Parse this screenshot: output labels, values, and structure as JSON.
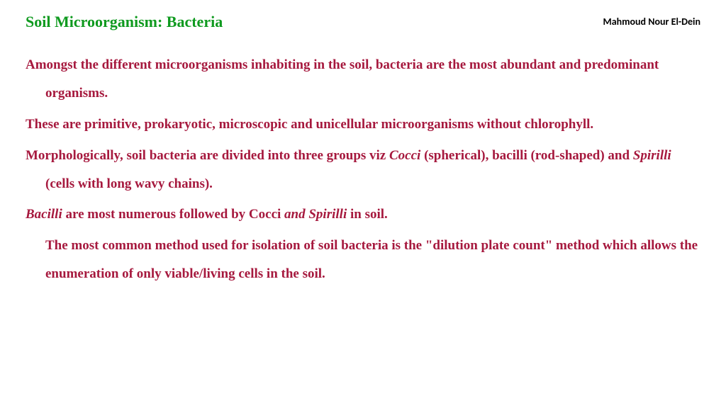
{
  "colors": {
    "title": "#0f9a1f",
    "author": "#000000",
    "body": "#a6193e",
    "background": "#ffffff"
  },
  "typography": {
    "title_fontsize": 22,
    "author_fontsize": 14,
    "body_fontsize": 19,
    "line_height": 2.1
  },
  "header": {
    "title": "Soil Microorganism: Bacteria",
    "author": "Mahmoud Nour El-Dein"
  },
  "paragraphs": [
    {
      "style": "hanging",
      "segments": [
        {
          "text": "Amongst the different microorganisms inhabiting in the soil, bacteria are the most abundant and predominant organisms.",
          "italic": false
        }
      ]
    },
    {
      "style": "hanging",
      "segments": [
        {
          "text": "These are primitive, prokaryotic, microscopic and unicellular microorganisms without chlorophyll.",
          "italic": false
        }
      ]
    },
    {
      "style": "hanging",
      "segments": [
        {
          "text": "Morphologically, soil bacteria are divided into three groups viz ",
          "italic": false
        },
        {
          "text": "Cocci ",
          "italic": true
        },
        {
          "text": "(spherical), bacilli (rod-shaped) and ",
          "italic": false
        },
        {
          "text": "Spirilli ",
          "italic": true
        },
        {
          "text": " (cells with long wavy chains).",
          "italic": false
        }
      ]
    },
    {
      "style": "hanging",
      "segments": [
        {
          "text": "Bacilli ",
          "italic": true
        },
        {
          "text": "are most numerous followed by Cocci ",
          "italic": false
        },
        {
          "text": "and Spirilli ",
          "italic": true
        },
        {
          "text": "in soil.",
          "italic": false
        }
      ]
    },
    {
      "style": "indent",
      "segments": [
        {
          "text": "The most common method used for isolation of soil bacteria is the \"dilution plate count\" method which allows the enumeration of only viable/living cells in the soil.",
          "italic": false
        }
      ]
    }
  ]
}
